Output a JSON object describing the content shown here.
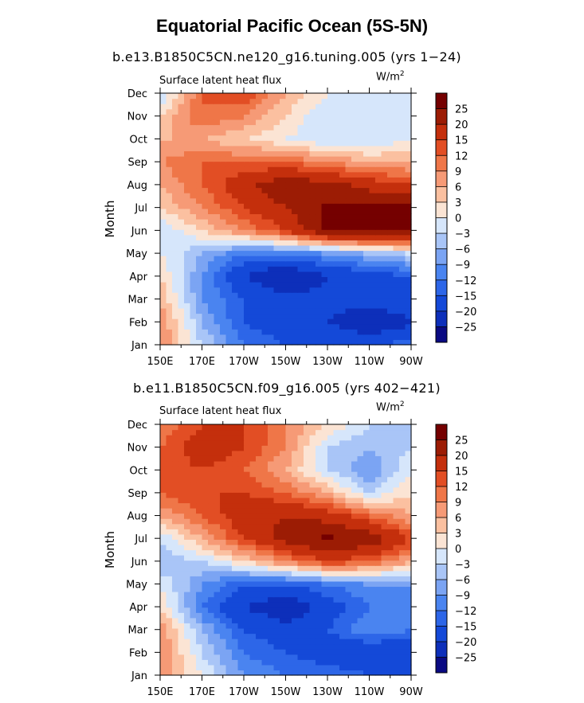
{
  "figure": {
    "title": "Equatorial Pacific Ocean (5S-5N)"
  },
  "colorbar": {
    "levels": [
      -25,
      -20,
      -15,
      -12,
      -9,
      -6,
      -3,
      0,
      3,
      6,
      9,
      12,
      15,
      20,
      25
    ],
    "labels": [
      "25",
      "20",
      "15",
      "12",
      "9",
      "6",
      "3",
      "0",
      "−3",
      "−6",
      "−9",
      "−12",
      "−15",
      "−20",
      "−25"
    ],
    "colors": [
      "#0a0a82",
      "#0d2fba",
      "#1449d8",
      "#2d66e8",
      "#4a84f0",
      "#7ba4f3",
      "#a9c5f7",
      "#d6e6fb",
      "#fbe4d4",
      "#fbc0a0",
      "#f69a76",
      "#ef7648",
      "#e24e24",
      "#c42f0c",
      "#9c1c04",
      "#750000"
    ]
  },
  "panels": [
    {
      "subtitle": "b.e13.B1850C5CN.ne120_g16.tuning.005 (yrs 1−24)",
      "variable": "Surface latent heat flux",
      "units": "W/m",
      "units_sup": "2"
    },
    {
      "subtitle": "b.e11.B1850C5CN.f09_g16.005 (yrs 402−421)",
      "variable": "Surface latent heat flux",
      "units": "W/m",
      "units_sup": "2"
    }
  ],
  "axes": {
    "ylabel": "Month",
    "yticks": [
      "Jan",
      "Feb",
      "Mar",
      "Apr",
      "May",
      "Jun",
      "Jul",
      "Aug",
      "Sep",
      "Oct",
      "Nov",
      "Dec"
    ],
    "xticks": [
      "150E",
      "170E",
      "170W",
      "150W",
      "130W",
      "110W",
      "90W"
    ]
  },
  "chart_data": [
    {
      "type": "heatmap",
      "title": "b.e13.B1850C5CN.ne120_g16.tuning.005 (yrs 1−24)",
      "subtitle": "Surface latent heat flux",
      "units": "W/m2",
      "xlabel": "",
      "ylabel": "Month",
      "x": [
        "150E",
        "170E",
        "170W",
        "150W",
        "130W",
        "110W",
        "90W"
      ],
      "x_degrees_east": [
        150,
        170,
        190,
        210,
        230,
        250,
        270
      ],
      "y": [
        "Jan",
        "Feb",
        "Mar",
        "Apr",
        "May",
        "Jun",
        "Jul",
        "Aug",
        "Sep",
        "Oct",
        "Nov",
        "Dec"
      ],
      "values": [
        [
          9,
          -3,
          -12,
          -15,
          -15,
          -15,
          -13
        ],
        [
          9,
          -6,
          -15,
          -18,
          -20,
          -25,
          -21
        ],
        [
          6,
          -9,
          -15,
          -18,
          -18,
          -18,
          -15
        ],
        [
          3,
          -9,
          -20,
          -26,
          -20,
          -18,
          -15
        ],
        [
          0,
          -6,
          -12,
          -12,
          -9,
          -6,
          -3
        ],
        [
          -3,
          3,
          9,
          15,
          26,
          27,
          26
        ],
        [
          3,
          9,
          15,
          20,
          26,
          27,
          26
        ],
        [
          6,
          12,
          18,
          24,
          22,
          18,
          15
        ],
        [
          9,
          12,
          12,
          12,
          9,
          6,
          6
        ],
        [
          6,
          6,
          3,
          0,
          -3,
          -3,
          0
        ],
        [
          3,
          12,
          9,
          3,
          -3,
          -3,
          -3
        ],
        [
          -3,
          12,
          15,
          6,
          0,
          0,
          0
        ]
      ]
    },
    {
      "type": "heatmap",
      "title": "b.e11.B1850C5CN.f09_g16.005 (yrs 402−421)",
      "subtitle": "Surface latent heat flux",
      "units": "W/m2",
      "xlabel": "",
      "ylabel": "Month",
      "x": [
        "150E",
        "170E",
        "170W",
        "150W",
        "130W",
        "110W",
        "90W"
      ],
      "x_degrees_east": [
        150,
        170,
        190,
        210,
        230,
        250,
        270
      ],
      "y": [
        "Jan",
        "Feb",
        "Mar",
        "Apr",
        "May",
        "Jun",
        "Jul",
        "Aug",
        "Sep",
        "Oct",
        "Nov",
        "Dec"
      ],
      "values": [
        [
          9,
          0,
          -9,
          -12,
          -12,
          -15,
          -15
        ],
        [
          9,
          -3,
          -12,
          -15,
          -18,
          -20,
          -20
        ],
        [
          9,
          -6,
          -15,
          -18,
          -15,
          -9,
          -12
        ],
        [
          3,
          -12,
          -20,
          -24,
          -18,
          -12,
          -12
        ],
        [
          0,
          -9,
          -15,
          -15,
          -12,
          -9,
          -9
        ],
        [
          -6,
          -3,
          3,
          9,
          15,
          12,
          6
        ],
        [
          -3,
          6,
          15,
          22,
          26,
          24,
          15
        ],
        [
          6,
          12,
          18,
          20,
          18,
          12,
          6
        ],
        [
          12,
          15,
          15,
          12,
          6,
          -3,
          3
        ],
        [
          12,
          15,
          12,
          6,
          -3,
          -9,
          0
        ],
        [
          12,
          18,
          15,
          9,
          -3,
          -6,
          -3
        ],
        [
          9,
          15,
          15,
          9,
          3,
          -3,
          -6
        ]
      ]
    }
  ]
}
